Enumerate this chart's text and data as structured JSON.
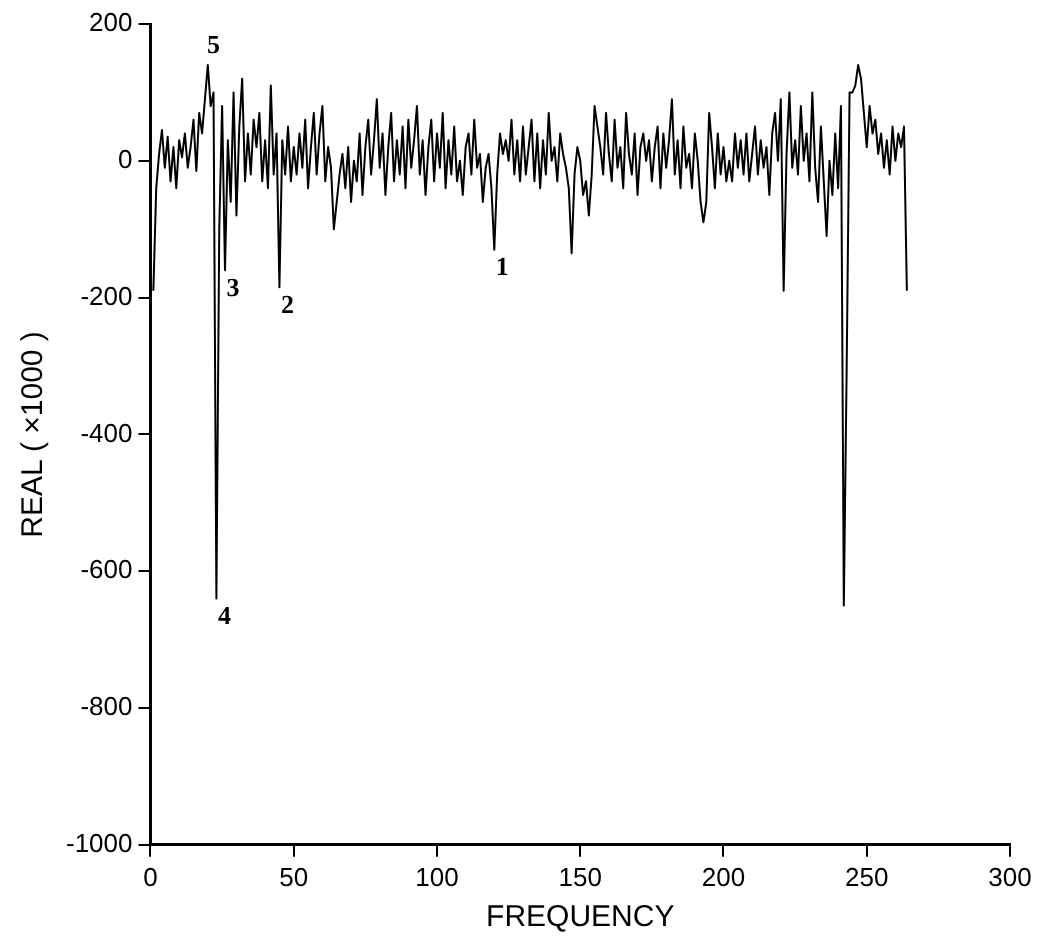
{
  "chart_data": {
    "type": "line",
    "xlabel": "FREQUENCY",
    "ylabel": "REAL ( ×1000 )",
    "xlim": [
      0,
      300
    ],
    "xticks": [
      0,
      50,
      100,
      150,
      200,
      250,
      300
    ],
    "ylim": [
      -1000,
      200
    ],
    "yticks": [
      -1000,
      -800,
      -600,
      -400,
      -200,
      0,
      200
    ],
    "grid": false,
    "legend": false,
    "marker": "none",
    "line_style": "solid",
    "annotations": [
      {
        "text": "1",
        "x": 120,
        "y": -130
      },
      {
        "text": "2",
        "x": 45,
        "y": -185
      },
      {
        "text": "3",
        "x": 26,
        "y": -160
      },
      {
        "text": "4",
        "x": 23,
        "y": -640
      },
      {
        "text": "5",
        "x": 22,
        "y": 140
      }
    ],
    "x": [
      1,
      2,
      3,
      4,
      5,
      6,
      7,
      8,
      9,
      10,
      11,
      12,
      13,
      14,
      15,
      16,
      17,
      18,
      19,
      20,
      21,
      22,
      23,
      24,
      25,
      26,
      27,
      28,
      29,
      30,
      31,
      32,
      33,
      34,
      35,
      36,
      37,
      38,
      39,
      40,
      41,
      42,
      43,
      44,
      45,
      46,
      47,
      48,
      49,
      50,
      51,
      52,
      53,
      54,
      55,
      56,
      57,
      58,
      59,
      60,
      61,
      62,
      63,
      64,
      65,
      66,
      67,
      68,
      69,
      70,
      71,
      72,
      73,
      74,
      75,
      76,
      77,
      78,
      79,
      80,
      81,
      82,
      83,
      84,
      85,
      86,
      87,
      88,
      89,
      90,
      91,
      92,
      93,
      94,
      95,
      96,
      97,
      98,
      99,
      100,
      101,
      102,
      103,
      104,
      105,
      106,
      107,
      108,
      109,
      110,
      111,
      112,
      113,
      114,
      115,
      116,
      117,
      118,
      119,
      120,
      121,
      122,
      123,
      124,
      125,
      126,
      127,
      128,
      129,
      130,
      131,
      132,
      133,
      134,
      135,
      136,
      137,
      138,
      139,
      140,
      141,
      142,
      143,
      144,
      145,
      146,
      147,
      148,
      149,
      150,
      151,
      152,
      153,
      154,
      155,
      156,
      157,
      158,
      159,
      160,
      161,
      162,
      163,
      164,
      165,
      166,
      167,
      168,
      169,
      170,
      171,
      172,
      173,
      174,
      175,
      176,
      177,
      178,
      179,
      180,
      181,
      182,
      183,
      184,
      185,
      186,
      187,
      188,
      189,
      190,
      191,
      192,
      193,
      194,
      195,
      196,
      197,
      198,
      199,
      200,
      201,
      202,
      203,
      204,
      205,
      206,
      207,
      208,
      209,
      210,
      211,
      212,
      213,
      214,
      215,
      216,
      217,
      218,
      219,
      220,
      221,
      222,
      223,
      224,
      225,
      226,
      227,
      228,
      229,
      230,
      231,
      232,
      233,
      234,
      235,
      236,
      237,
      238,
      239,
      240,
      241,
      242,
      243,
      244,
      245,
      246,
      247,
      248,
      249,
      250,
      251,
      252,
      253,
      254,
      255,
      256,
      257,
      258,
      259,
      260,
      261,
      262,
      263,
      264
    ],
    "series": [
      {
        "color": "#000000",
        "values": [
          -190,
          -40,
          10,
          45,
          -10,
          35,
          -30,
          20,
          -40,
          30,
          5,
          40,
          -10,
          20,
          60,
          -15,
          70,
          40,
          90,
          140,
          80,
          100,
          -640,
          -100,
          80,
          -160,
          30,
          -60,
          100,
          -80,
          50,
          120,
          -30,
          40,
          -20,
          60,
          20,
          70,
          -30,
          30,
          -40,
          110,
          -20,
          40,
          -185,
          30,
          -20,
          50,
          -30,
          20,
          -20,
          40,
          -10,
          60,
          -40,
          20,
          70,
          -20,
          40,
          80,
          -30,
          20,
          -10,
          -100,
          -60,
          -20,
          10,
          -40,
          20,
          -60,
          0,
          -30,
          40,
          -50,
          20,
          60,
          -20,
          30,
          90,
          -10,
          40,
          -50,
          20,
          70,
          -30,
          30,
          -20,
          50,
          -40,
          60,
          -10,
          30,
          80,
          -20,
          30,
          -50,
          20,
          60,
          -30,
          40,
          -10,
          70,
          -40,
          30,
          -20,
          50,
          -30,
          0,
          -50,
          20,
          40,
          -20,
          60,
          -10,
          10,
          -60,
          -10,
          10,
          -40,
          -130,
          -20,
          40,
          10,
          30,
          0,
          60,
          -20,
          30,
          -30,
          50,
          -20,
          20,
          60,
          -30,
          40,
          -40,
          30,
          -20,
          70,
          0,
          20,
          -30,
          40,
          10,
          -10,
          -40,
          -135,
          -20,
          20,
          0,
          -50,
          -30,
          -80,
          -20,
          80,
          50,
          20,
          -20,
          70,
          10,
          -30,
          60,
          -10,
          20,
          -40,
          70,
          10,
          -20,
          40,
          -50,
          20,
          40,
          0,
          30,
          -30,
          20,
          50,
          -40,
          40,
          -10,
          30,
          90,
          -20,
          30,
          -40,
          50,
          -10,
          10,
          -40,
          40,
          0,
          -60,
          -90,
          -60,
          70,
          20,
          -40,
          40,
          -20,
          20,
          -30,
          0,
          -30,
          40,
          -10,
          30,
          -20,
          40,
          -30,
          10,
          50,
          -20,
          30,
          -10,
          20,
          -50,
          40,
          70,
          0,
          90,
          -190,
          10,
          100,
          -10,
          30,
          -20,
          80,
          0,
          40,
          -30,
          100,
          -10,
          -60,
          50,
          -30,
          -110,
          0,
          -50,
          40,
          -40,
          80,
          -650,
          -300,
          100,
          100,
          110,
          140,
          120,
          70,
          20,
          80,
          40,
          60,
          10,
          40,
          -10,
          30,
          -20,
          50,
          0,
          40,
          20,
          50,
          -190
        ]
      }
    ]
  }
}
